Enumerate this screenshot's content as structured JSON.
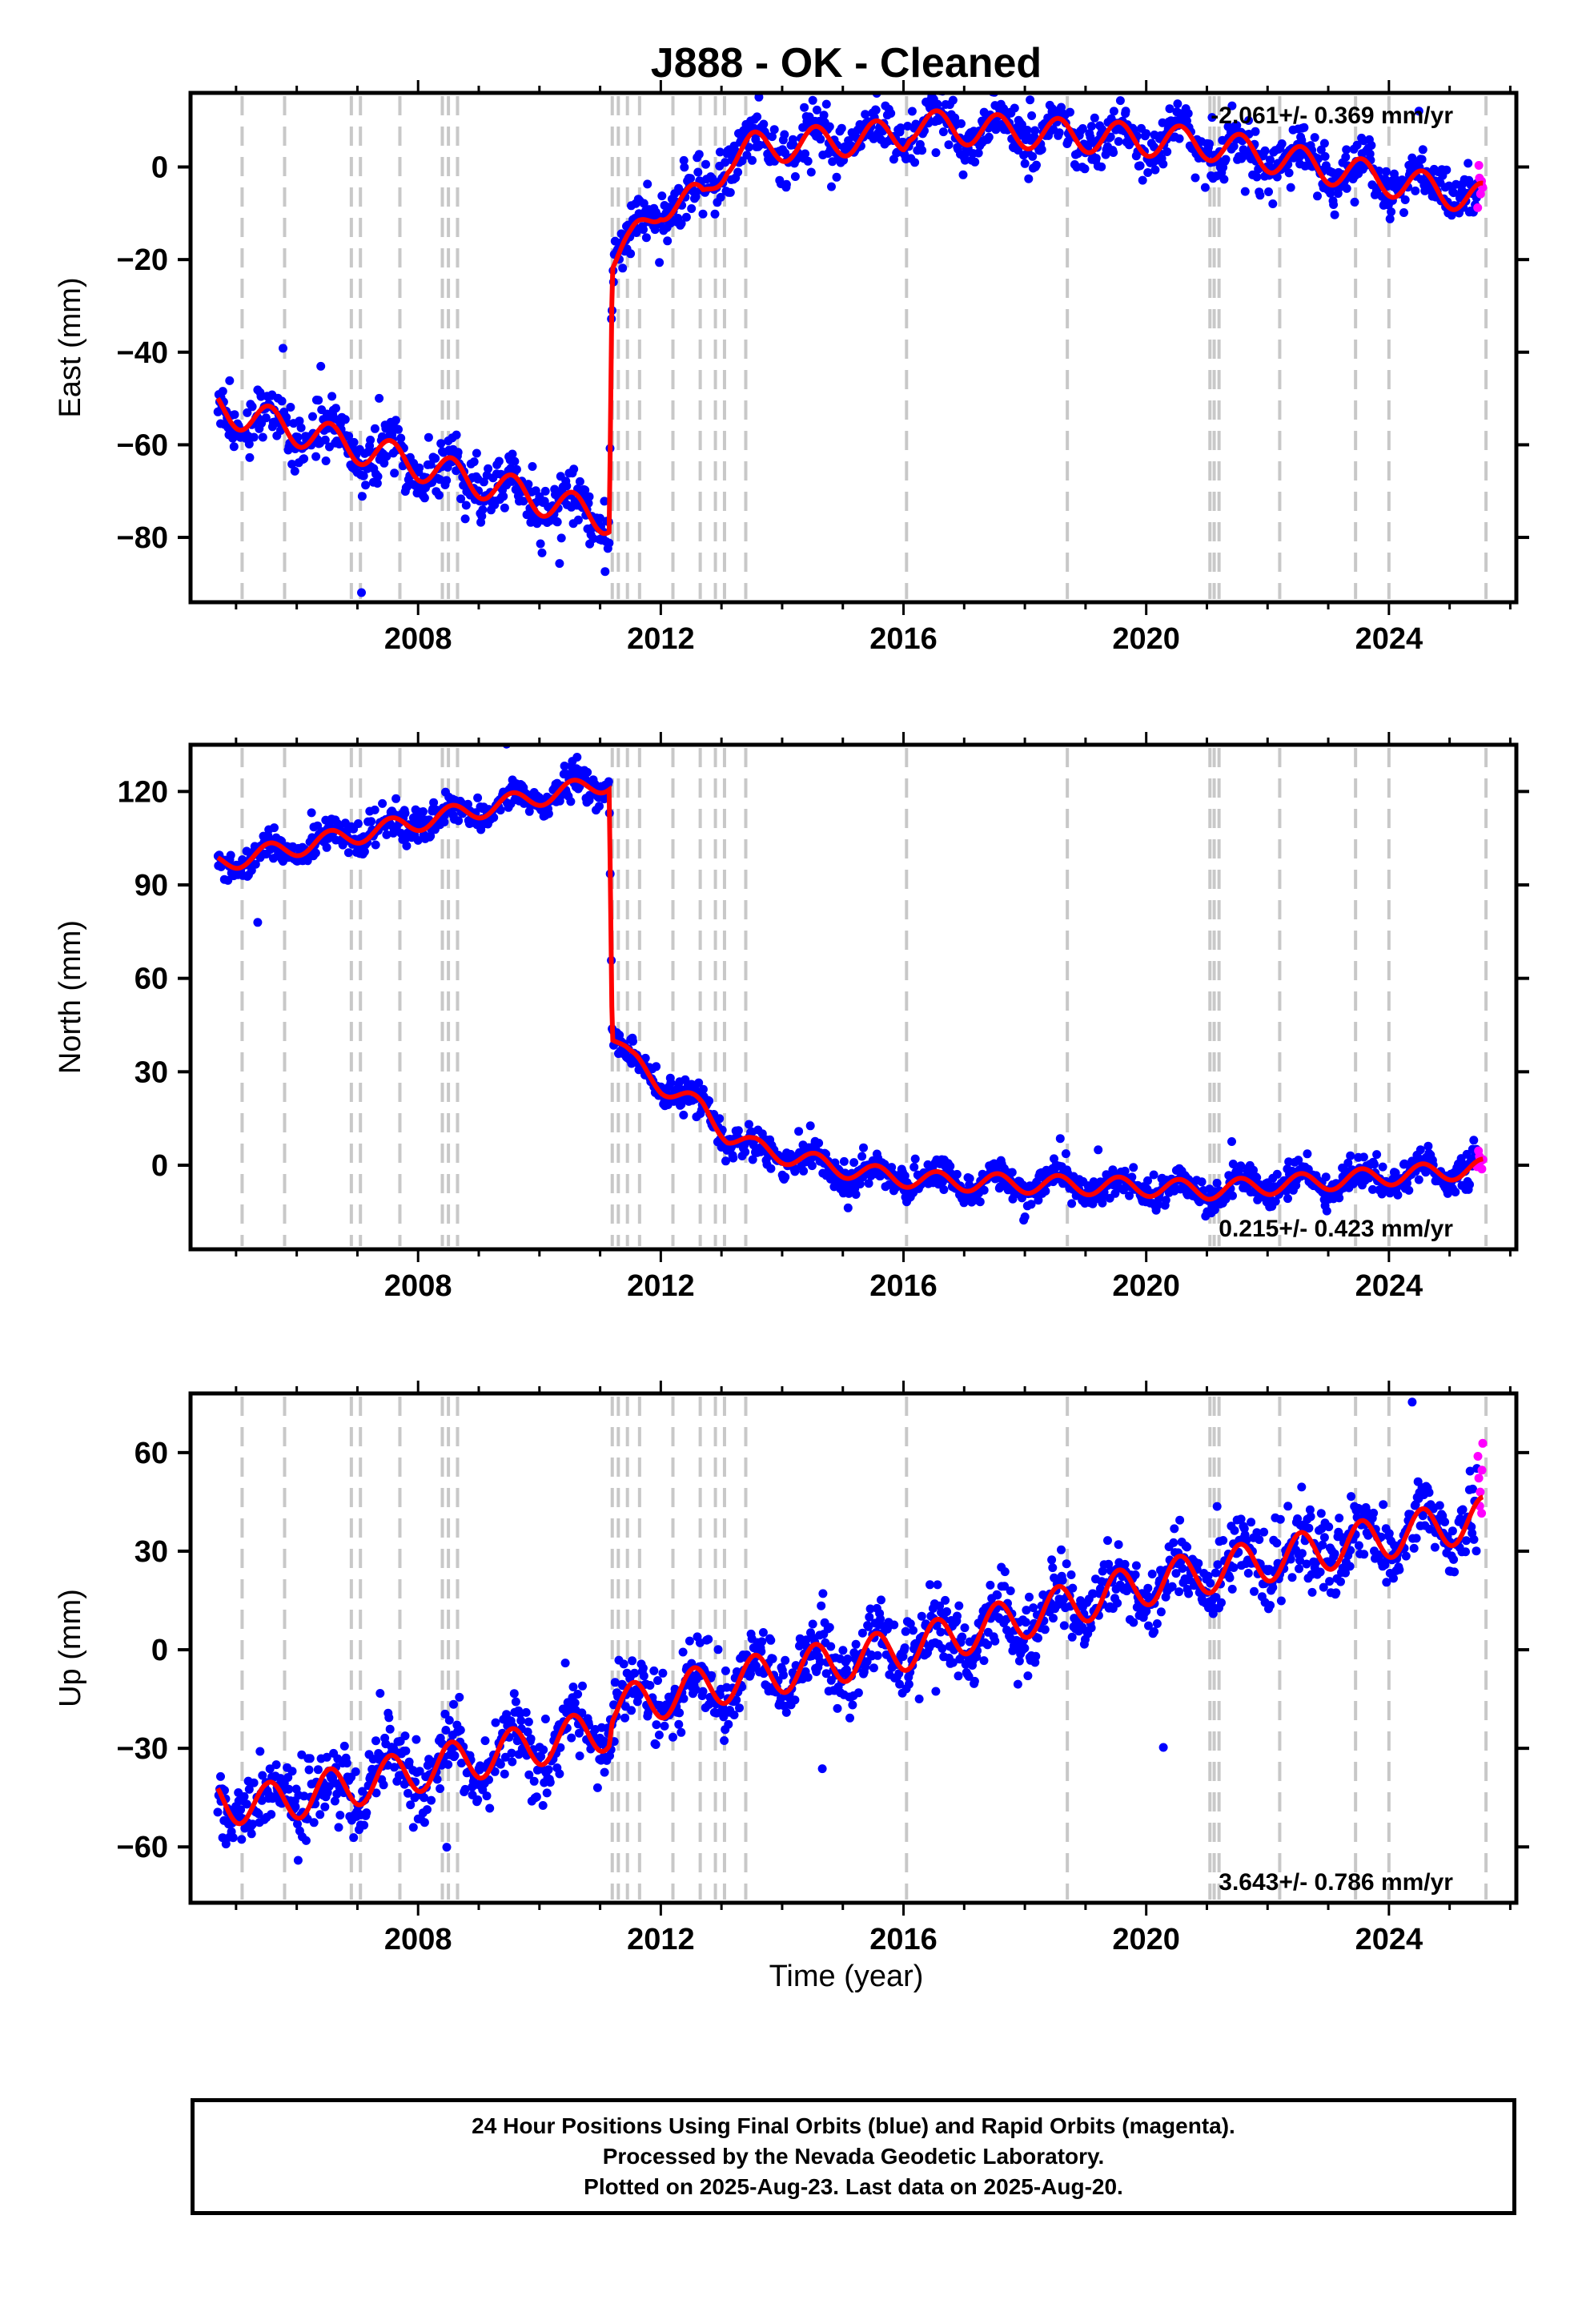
{
  "title": "J888  - OK - Cleaned",
  "x_axis_label": "Time (year)",
  "colors": {
    "final_orbits": "#0000ff",
    "rapid_orbits": "#ff00ff",
    "model": "#ff0000",
    "event_lines": "#c8c8c8"
  },
  "footer": {
    "line1": "24 Hour Positions Using Final Orbits (blue) and Rapid Orbits (magenta).",
    "line2": "Processed by the Nevada Geodetic Laboratory.",
    "line3": "Plotted on 2025-Aug-23. Last data on 2025-Aug-20."
  },
  "chart_data": {
    "type": "scatter",
    "x_ticks": [
      2008,
      2012,
      2016,
      2020,
      2024
    ],
    "xlim": [
      2004.25,
      2026.1
    ],
    "event_lines": [
      2005.1,
      2005.8,
      2006.9,
      2007.05,
      2007.7,
      2008.4,
      2008.5,
      2008.65,
      2011.2,
      2011.3,
      2011.45,
      2011.65,
      2012.2,
      2012.65,
      2012.9,
      2013.05,
      2013.4,
      2016.05,
      2018.7,
      2021.05,
      2021.12,
      2021.2,
      2022.2,
      2023.45,
      2024.0,
      2025.6
    ],
    "panels": [
      {
        "name": "East",
        "ylabel": "East (mm)",
        "ylim": [
          -94,
          16
        ],
        "yticks": [
          -80,
          -60,
          -40,
          -20,
          0
        ],
        "rate_label": "-2.061+/- 0.369 mm/yr",
        "rate_position": "top-right",
        "model_knots": [
          [
            2004.7,
            -52
          ],
          [
            2011.15,
            -76
          ],
          [
            2011.2,
            -20
          ],
          [
            2011.5,
            -17
          ],
          [
            2012.0,
            -8
          ],
          [
            2012.7,
            -7
          ],
          [
            2013.1,
            2
          ],
          [
            2013.5,
            4
          ],
          [
            2016.0,
            7
          ],
          [
            2016.1,
            9
          ],
          [
            2021.0,
            5
          ],
          [
            2025.55,
            -7
          ]
        ],
        "amplitude": 3.5,
        "noise": 2.8
      },
      {
        "name": "North",
        "ylabel": "North (mm)",
        "ylim": [
          -27,
          135
        ],
        "yticks": [
          0,
          30,
          60,
          90,
          120
        ],
        "rate_label": "0.215+/- 0.423 mm/yr",
        "rate_position": "bottom-right",
        "model_knots": [
          [
            2004.7,
            97
          ],
          [
            2011.15,
            123
          ],
          [
            2011.2,
            42
          ],
          [
            2011.5,
            34
          ],
          [
            2012.0,
            26
          ],
          [
            2012.7,
            18
          ],
          [
            2013.1,
            10
          ],
          [
            2013.5,
            6
          ],
          [
            2014.5,
            1
          ],
          [
            2015.5,
            -3
          ],
          [
            2016.5,
            -5
          ],
          [
            2018.0,
            -6
          ],
          [
            2020.0,
            -7
          ],
          [
            2021.0,
            -8
          ],
          [
            2023.0,
            -5
          ],
          [
            2025.55,
            -1
          ]
        ],
        "amplitude": 3.0,
        "noise": 2.5
      },
      {
        "name": "Up",
        "ylabel": "Up (mm)",
        "ylim": [
          -77,
          78
        ],
        "yticks": [
          -60,
          -30,
          0,
          30,
          60
        ],
        "rate_label": "3.643+/- 0.786 mm/yr",
        "rate_position": "bottom-right",
        "model_knots": [
          [
            2004.7,
            -46
          ],
          [
            2005.5,
            -47
          ],
          [
            2011.15,
            -24
          ],
          [
            2011.2,
            -18
          ],
          [
            2013.0,
            -10
          ],
          [
            2016.0,
            0
          ],
          [
            2020.0,
            20
          ],
          [
            2025.55,
            40
          ]
        ],
        "amplitude": 6.5,
        "noise": 5.5
      }
    ]
  }
}
